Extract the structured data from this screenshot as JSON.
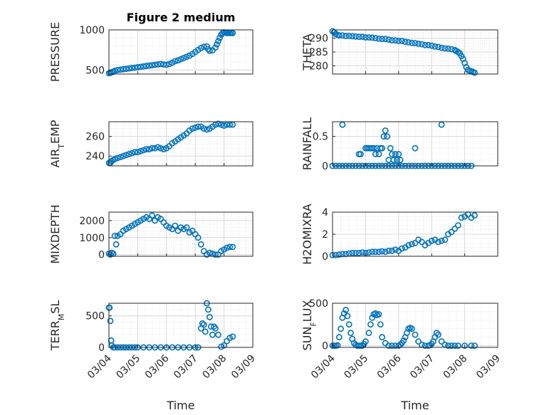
{
  "figure": {
    "title": "Figure 2 medium"
  },
  "style": {
    "marker_color": "#0072bd",
    "axis_color": "#262626",
    "grid_color": "#d9d9d9"
  },
  "chart_data": [
    {
      "type": "scatter",
      "ylabel": "PRESSURE",
      "xlabel": "",
      "title": "Figure 2 medium",
      "xlim": [
        "03/04",
        "03/09"
      ],
      "ylim": [
        450,
        1000
      ],
      "yticks": [
        500,
        1000
      ],
      "grid": true,
      "x_day": [
        0.0,
        0.05,
        0.1,
        0.15,
        0.2,
        0.3,
        0.4,
        0.5,
        0.6,
        0.7,
        0.8,
        0.9,
        1.0,
        1.1,
        1.2,
        1.3,
        1.4,
        1.5,
        1.6,
        1.7,
        1.8,
        1.9,
        2.0,
        2.1,
        2.2,
        2.3,
        2.4,
        2.5,
        2.6,
        2.7,
        2.8,
        2.9,
        3.0,
        3.1,
        3.2,
        3.3,
        3.4,
        3.45,
        3.5,
        3.6,
        3.7,
        3.75,
        3.8,
        3.85,
        3.9,
        3.95,
        4.0,
        4.05,
        4.1,
        4.15,
        4.2,
        4.25,
        4.3
      ],
      "values": [
        460,
        465,
        470,
        480,
        490,
        500,
        505,
        510,
        515,
        520,
        525,
        530,
        535,
        540,
        545,
        550,
        555,
        560,
        565,
        570,
        575,
        570,
        565,
        575,
        590,
        610,
        620,
        635,
        650,
        665,
        680,
        700,
        725,
        750,
        775,
        790,
        795,
        760,
        740,
        745,
        780,
        820,
        860,
        900,
        940,
        960,
        970,
        965,
        960,
        965,
        960,
        965,
        960
      ]
    },
    {
      "type": "scatter",
      "ylabel": "THETA",
      "xlabel": "",
      "xlim": [
        "03/04",
        "03/09"
      ],
      "ylim": [
        277,
        293
      ],
      "yticks": [
        280,
        285,
        290
      ],
      "grid": true,
      "x_day": [
        0.0,
        0.05,
        0.1,
        0.15,
        0.2,
        0.3,
        0.4,
        0.5,
        0.6,
        0.7,
        0.8,
        0.9,
        1.0,
        1.1,
        1.2,
        1.3,
        1.4,
        1.5,
        1.6,
        1.7,
        1.8,
        1.9,
        2.0,
        2.1,
        2.2,
        2.3,
        2.4,
        2.5,
        2.6,
        2.7,
        2.8,
        2.9,
        3.0,
        3.1,
        3.2,
        3.3,
        3.4,
        3.5,
        3.6,
        3.7,
        3.75,
        3.8,
        3.85,
        3.9,
        3.95,
        4.0,
        4.05,
        4.1,
        4.15,
        4.2,
        4.25,
        4.3
      ],
      "values": [
        292.5,
        292.2,
        291.5,
        291.2,
        291.0,
        291.0,
        290.8,
        290.8,
        290.7,
        290.6,
        290.5,
        290.5,
        290.3,
        290.3,
        290.2,
        290.0,
        289.8,
        289.7,
        289.7,
        289.5,
        289.2,
        289.2,
        289.0,
        289.0,
        288.7,
        288.5,
        288.3,
        288.2,
        288.0,
        287.8,
        287.5,
        287.5,
        287.3,
        287.0,
        286.8,
        286.5,
        286.3,
        286.2,
        286.0,
        285.7,
        285.3,
        285.0,
        284.5,
        283.5,
        282.5,
        281.0,
        279.5,
        278.5,
        278.2,
        278.0,
        277.8,
        277.5
      ]
    },
    {
      "type": "scatter",
      "ylabel": "AIR_TEMP",
      "xlabel": "",
      "xlim": [
        "03/04",
        "03/09"
      ],
      "ylim": [
        230,
        275
      ],
      "yticks": [
        240,
        260
      ],
      "grid": true,
      "x_day": [
        0.0,
        0.05,
        0.1,
        0.15,
        0.2,
        0.3,
        0.4,
        0.5,
        0.6,
        0.7,
        0.8,
        0.9,
        1.0,
        1.1,
        1.2,
        1.3,
        1.4,
        1.5,
        1.6,
        1.7,
        1.8,
        1.9,
        2.0,
        2.1,
        2.2,
        2.3,
        2.4,
        2.5,
        2.6,
        2.7,
        2.8,
        2.9,
        3.0,
        3.1,
        3.2,
        3.3,
        3.4,
        3.5,
        3.6,
        3.7,
        3.8,
        3.9,
        4.0,
        4.1,
        4.2,
        4.3
      ],
      "values": [
        233,
        233,
        235,
        236,
        237,
        238,
        239,
        240,
        241,
        242,
        243,
        244,
        244,
        245,
        246,
        247,
        247,
        248,
        248,
        249,
        248,
        247,
        248,
        250,
        253,
        255,
        257,
        259,
        261,
        263,
        266,
        268,
        269,
        270,
        270,
        268,
        267,
        268,
        270,
        272,
        273,
        272,
        271,
        272,
        272,
        272
      ]
    },
    {
      "type": "scatter",
      "ylabel": "RAINFALL",
      "xlabel": "",
      "xlim": [
        "03/04",
        "03/09"
      ],
      "ylim": [
        0,
        0.75
      ],
      "yticks": [
        0,
        0.5
      ],
      "grid": true,
      "x_day": [
        0.0,
        0.1,
        0.2,
        0.3,
        0.4,
        0.5,
        0.6,
        0.7,
        0.8,
        0.9,
        1.0,
        1.1,
        1.2,
        1.3,
        1.4,
        1.5,
        1.6,
        1.7,
        1.8,
        1.9,
        2.0,
        2.1,
        2.2,
        2.3,
        2.4,
        2.5,
        2.6,
        2.7,
        2.8,
        2.9,
        3.0,
        3.1,
        3.2,
        3.3,
        3.4,
        3.5,
        3.6,
        3.7,
        3.8,
        3.9,
        4.0,
        4.1,
        4.2,
        0.3,
        0.8,
        0.85,
        1.0,
        1.05,
        1.1,
        1.15,
        1.2,
        1.25,
        1.3,
        1.35,
        1.4,
        1.45,
        1.5,
        1.55,
        1.6,
        1.65,
        1.7,
        1.75,
        1.8,
        1.85,
        1.9,
        1.95,
        2.0,
        2.05,
        2.5,
        3.3
      ],
      "values": [
        0,
        0,
        0,
        0,
        0,
        0,
        0,
        0,
        0,
        0,
        0,
        0,
        0,
        0,
        0,
        0,
        0,
        0,
        0,
        0,
        0,
        0,
        0,
        0,
        0,
        0,
        0,
        0,
        0,
        0,
        0,
        0,
        0,
        0,
        0,
        0,
        0,
        0,
        0,
        0,
        0,
        0,
        0,
        0.7,
        0.2,
        0.2,
        0.3,
        0.3,
        0.3,
        0.3,
        0.3,
        0.3,
        0.2,
        0.3,
        0.2,
        0.3,
        0.3,
        0.5,
        0.6,
        0.5,
        0.1,
        0.3,
        0.2,
        0.1,
        0.2,
        0.1,
        0.2,
        0.1,
        0.3,
        0.7
      ]
    },
    {
      "type": "scatter",
      "ylabel": "MIXDEPTH",
      "xlabel": "",
      "xlim": [
        "03/04",
        "03/09"
      ],
      "ylim": [
        -100,
        2500
      ],
      "yticks": [
        0,
        1000,
        2000
      ],
      "grid": true,
      "x_day": [
        0.0,
        0.05,
        0.1,
        0.15,
        0.2,
        0.25,
        0.3,
        0.4,
        0.5,
        0.6,
        0.7,
        0.8,
        0.9,
        1.0,
        1.1,
        1.2,
        1.3,
        1.4,
        1.5,
        1.6,
        1.7,
        1.8,
        1.9,
        2.0,
        2.1,
        2.2,
        2.3,
        2.4,
        2.5,
        2.6,
        2.7,
        2.8,
        2.9,
        3.0,
        3.1,
        3.2,
        3.3,
        3.4,
        3.5,
        3.6,
        3.7,
        3.8,
        3.9,
        4.0,
        4.1,
        4.2,
        4.3
      ],
      "values": [
        50,
        0,
        100,
        50,
        1100,
        600,
        1100,
        1200,
        1400,
        1500,
        1600,
        1700,
        1800,
        1900,
        2000,
        2100,
        2200,
        2100,
        2300,
        2000,
        2200,
        2100,
        1900,
        1700,
        1600,
        1500,
        1700,
        1400,
        1600,
        1500,
        1600,
        1300,
        1400,
        1200,
        1000,
        600,
        200,
        0,
        100,
        50,
        0,
        0,
        200,
        300,
        400,
        450,
        450
      ]
    },
    {
      "type": "scatter",
      "ylabel": "H2OMIXRA",
      "xlabel": "",
      "xlim": [
        "03/04",
        "03/09"
      ],
      "ylim": [
        0,
        4
      ],
      "yticks": [
        0,
        2,
        4
      ],
      "grid": true,
      "x_day": [
        0.0,
        0.1,
        0.2,
        0.3,
        0.4,
        0.5,
        0.6,
        0.7,
        0.8,
        0.9,
        1.0,
        1.1,
        1.2,
        1.3,
        1.4,
        1.5,
        1.6,
        1.7,
        1.8,
        1.9,
        2.0,
        2.1,
        2.2,
        2.3,
        2.4,
        2.5,
        2.6,
        2.7,
        2.8,
        2.9,
        3.0,
        3.1,
        3.2,
        3.3,
        3.4,
        3.5,
        3.6,
        3.7,
        3.8,
        3.9,
        4.0,
        4.1,
        4.2,
        4.3
      ],
      "values": [
        0.1,
        0.1,
        0.15,
        0.2,
        0.2,
        0.25,
        0.3,
        0.3,
        0.3,
        0.35,
        0.3,
        0.35,
        0.4,
        0.4,
        0.4,
        0.45,
        0.4,
        0.5,
        0.5,
        0.6,
        0.5,
        0.7,
        0.8,
        1.0,
        1.1,
        1.2,
        1.5,
        1.3,
        1.0,
        1.2,
        1.4,
        1.5,
        1.3,
        1.4,
        1.5,
        2.0,
        2.2,
        2.5,
        2.8,
        3.5,
        3.6,
        3.8,
        3.5,
        3.7
      ]
    },
    {
      "type": "scatter",
      "ylabel": "TERR_MSL",
      "xlabel": "Time",
      "xlim": [
        "03/04",
        "03/09"
      ],
      "xticks": [
        "03/04",
        "03/05",
        "03/06",
        "03/07",
        "03/08",
        "03/09"
      ],
      "ylim": [
        0,
        700
      ],
      "yticks": [
        0,
        500
      ],
      "grid": true,
      "x_day": [
        0.0,
        0.02,
        0.05,
        0.08,
        0.1,
        0.15,
        0.2,
        0.3,
        0.4,
        0.5,
        0.6,
        0.7,
        0.8,
        0.9,
        1.0,
        1.2,
        1.4,
        1.6,
        1.8,
        2.0,
        2.2,
        2.4,
        2.6,
        2.8,
        3.0,
        3.1,
        3.2,
        3.25,
        3.3,
        3.35,
        3.4,
        3.45,
        3.5,
        3.55,
        3.6,
        3.65,
        3.7,
        3.8,
        3.9,
        4.0,
        4.1,
        4.2,
        4.3
      ],
      "values": [
        630,
        630,
        420,
        110,
        30,
        0,
        0,
        0,
        0,
        0,
        0,
        0,
        0,
        0,
        0,
        0,
        0,
        0,
        0,
        0,
        0,
        0,
        0,
        0,
        0,
        0,
        300,
        380,
        360,
        250,
        700,
        600,
        480,
        330,
        200,
        330,
        300,
        200,
        10,
        30,
        100,
        150,
        170
      ]
    },
    {
      "type": "scatter",
      "ylabel": "SUN_FLUX",
      "xlabel": "Time",
      "xlim": [
        "03/04",
        "03/09"
      ],
      "xticks": [
        "03/04",
        "03/05",
        "03/06",
        "03/07",
        "03/08",
        "03/09"
      ],
      "ylim": [
        -20,
        500
      ],
      "yticks": [
        0,
        500
      ],
      "grid": true,
      "x_day": [
        0.0,
        0.05,
        0.1,
        0.15,
        0.2,
        0.25,
        0.3,
        0.35,
        0.4,
        0.45,
        0.5,
        0.55,
        0.6,
        0.65,
        0.7,
        0.75,
        0.8,
        0.85,
        0.9,
        0.95,
        1.0,
        1.1,
        1.15,
        1.2,
        1.25,
        1.3,
        1.35,
        1.4,
        1.45,
        1.5,
        1.6,
        1.7,
        1.8,
        1.9,
        2.0,
        2.05,
        2.1,
        2.15,
        2.2,
        2.25,
        2.3,
        2.35,
        2.4,
        2.5,
        2.6,
        2.7,
        2.8,
        2.9,
        2.95,
        3.0,
        3.05,
        3.1,
        3.15,
        3.2,
        3.3,
        3.4,
        3.5,
        3.6,
        3.7,
        3.8,
        4.0,
        4.2,
        4.3
      ],
      "values": [
        0,
        0,
        0,
        5,
        100,
        200,
        330,
        380,
        420,
        350,
        250,
        150,
        80,
        30,
        10,
        0,
        0,
        0,
        0,
        20,
        50,
        150,
        250,
        330,
        370,
        380,
        360,
        370,
        250,
        100,
        30,
        0,
        0,
        0,
        0,
        10,
        30,
        60,
        100,
        150,
        200,
        210,
        200,
        130,
        50,
        10,
        0,
        0,
        5,
        20,
        50,
        100,
        150,
        130,
        50,
        10,
        0,
        0,
        0,
        0,
        0,
        0,
        0
      ]
    }
  ]
}
